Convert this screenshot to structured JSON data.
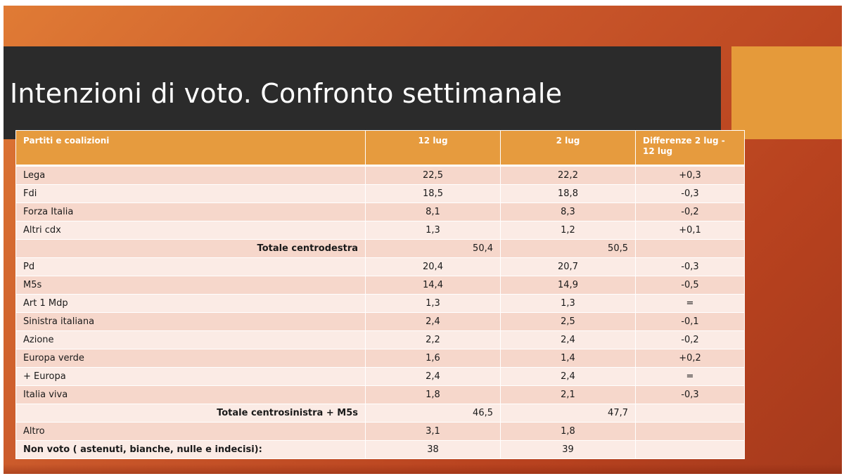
{
  "slide": {
    "title": "Intenzioni di voto. Confronto settimanale"
  },
  "table": {
    "headers": [
      "Partiti e coalizioni",
      "12 lug",
      "2 lug",
      "Differenze 2 lug - 12 lug"
    ],
    "rows": [
      {
        "name": "Lega",
        "a": "22,5",
        "b": "22,2",
        "diff": "+0,3"
      },
      {
        "name": "Fdi",
        "a": "18,5",
        "b": "18,8",
        "diff": "-0,3"
      },
      {
        "name": "Forza Italia",
        "a": "8,1",
        "b": "8,3",
        "diff": "-0,2"
      },
      {
        "name": "Altri cdx",
        "a": "1,3",
        "b": "1,2",
        "diff": "+0,1"
      },
      {
        "name": "Totale centrodestra",
        "a": "50,4",
        "b": "50,5",
        "diff": "",
        "total": true
      },
      {
        "name": "Pd",
        "a": "20,4",
        "b": "20,7",
        "diff": "-0,3"
      },
      {
        "name": "M5s",
        "a": "14,4",
        "b": "14,9",
        "diff": "-0,5"
      },
      {
        "name": "Art 1 Mdp",
        "a": "1,3",
        "b": "1,3",
        "diff": "="
      },
      {
        "name": "Sinistra italiana",
        "a": "2,4",
        "b": "2,5",
        "diff": "-0,1"
      },
      {
        "name": "Azione",
        "a": "2,2",
        "b": "2,4",
        "diff": "-0,2"
      },
      {
        "name": "Europa verde",
        "a": "1,6",
        "b": "1,4",
        "diff": "+0,2"
      },
      {
        "name": "+ Europa",
        "a": "2,4",
        "b": "2,4",
        "diff": "="
      },
      {
        "name": "Italia viva",
        "a": "1,8",
        "b": "2,1",
        "diff": "-0,3"
      },
      {
        "name": "Totale centrosinistra + M5s",
        "a": "46,5",
        "b": "47,7",
        "diff": "",
        "total": true
      },
      {
        "name": "Altro",
        "a": "3,1",
        "b": "1,8",
        "diff": ""
      },
      {
        "name": "Non voto ( astenuti, bianche, nulle e indecisi):",
        "a": "38",
        "b": "39",
        "diff": "",
        "bold": true
      }
    ]
  },
  "colors": {
    "header_bg": "#e69b3e",
    "row_odd": "#f6d7cb",
    "row_even": "#fbebe5",
    "title_bar": "#2b2b2b",
    "accent": "#e59a3a"
  }
}
